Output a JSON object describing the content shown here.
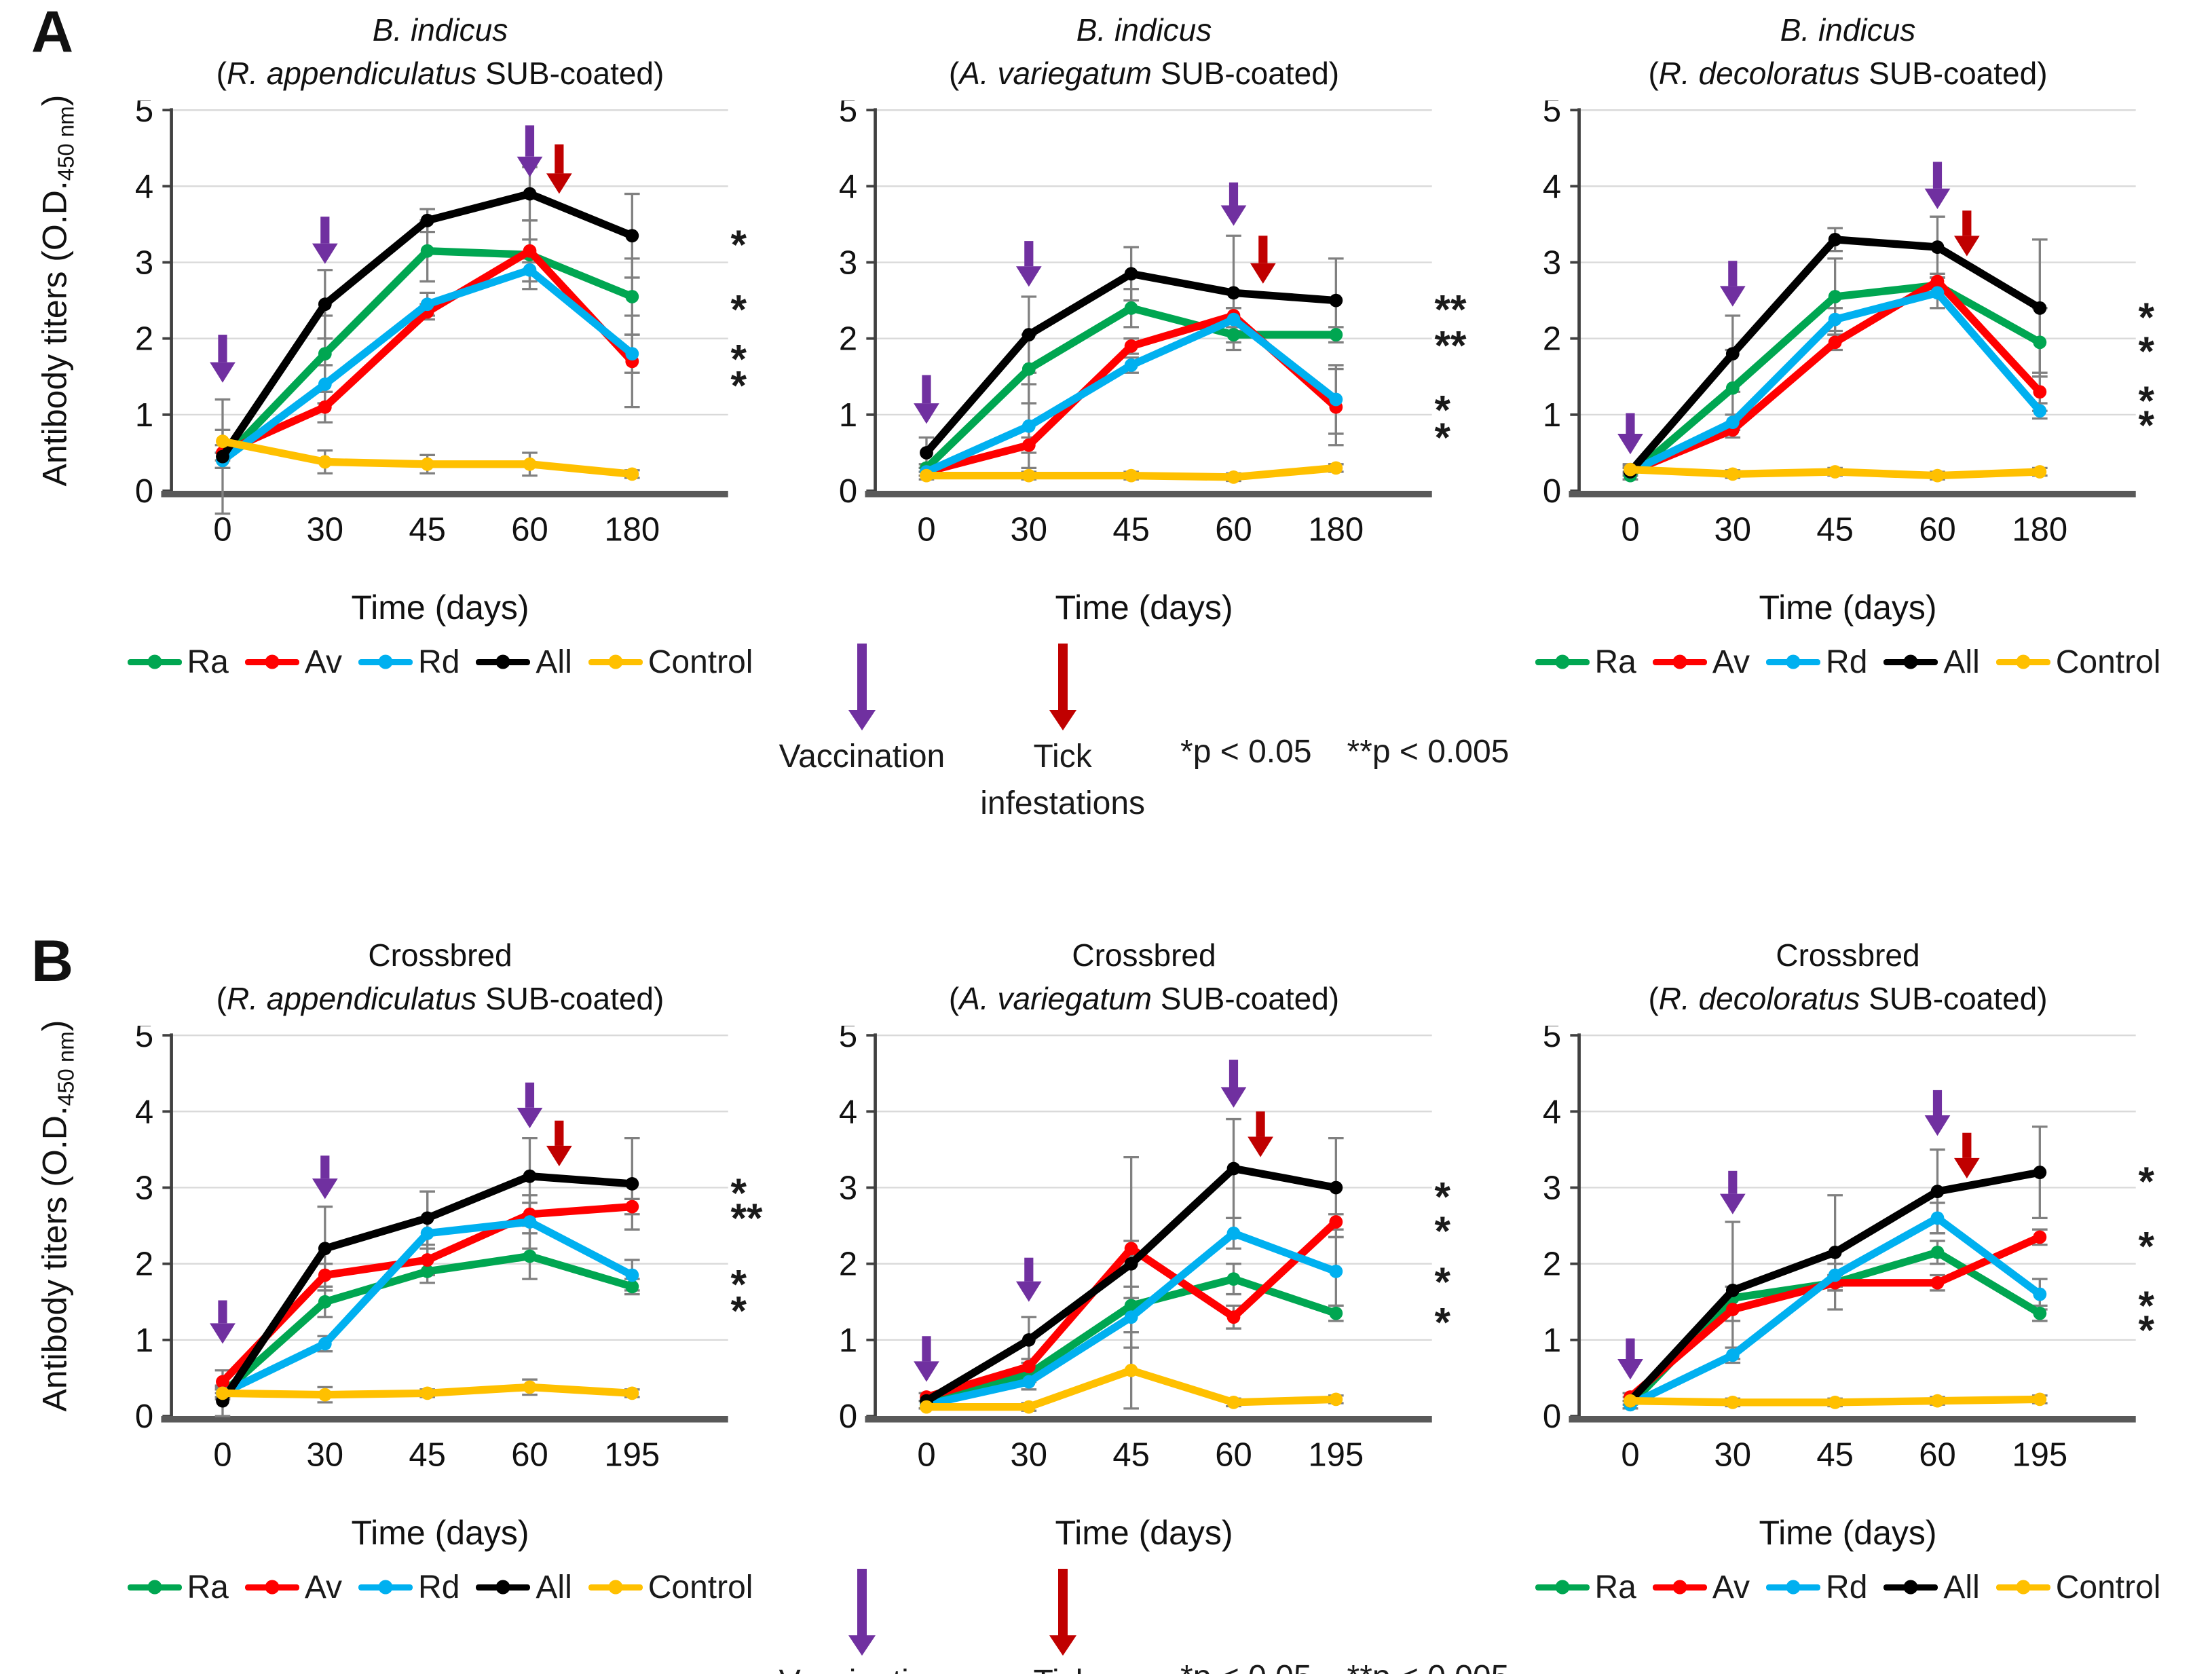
{
  "figure": {
    "panel_a_label": "A",
    "panel_b_label": "B",
    "ylabel_main": "Antibody titers (O.D.",
    "ylabel_sub": "450 nm",
    "ylabel_close": ")"
  },
  "colors": {
    "Ra": "#00A651",
    "Av": "#FF0000",
    "Rd": "#00B0F0",
    "All": "#000000",
    "Control": "#FFC000",
    "vaccination_arrow": "#7030A0",
    "tick_arrow": "#C00000",
    "grid": "#D9D9D9",
    "error_bar": "#808080",
    "axis": "#595959",
    "star": "#1a1a1a"
  },
  "legend": {
    "items": [
      "Ra",
      "Av",
      "Rd",
      "All",
      "Control"
    ]
  },
  "annotations": {
    "vaccination": "Vaccination",
    "tick": "Tick",
    "infestations": "infestations",
    "p1": "*p < 0.05",
    "p2": "**p < 0.005"
  },
  "chart_data": [
    {
      "type": "line",
      "panel": "A",
      "title": "B. indicus",
      "subtitle_pre": "(",
      "subtitle_species": "R. appendiculatus",
      "subtitle_post": " SUB-coated)",
      "xlabel": "Time (days)",
      "categories": [
        "0",
        "30",
        "45",
        "60",
        "180"
      ],
      "ylim": [
        0,
        5
      ],
      "yticks": [
        0,
        1,
        2,
        3,
        4,
        5
      ],
      "series": [
        {
          "name": "Ra",
          "values": [
            0.4,
            1.8,
            3.15,
            3.1,
            2.55
          ],
          "errors": [
            0.1,
            0.5,
            0.4,
            0.45,
            0.5
          ]
        },
        {
          "name": "Av",
          "values": [
            0.5,
            1.1,
            2.35,
            3.15,
            1.7
          ],
          "errors": [
            0.1,
            0.2,
            0.1,
            0.15,
            0.6
          ]
        },
        {
          "name": "Rd",
          "values": [
            0.4,
            1.4,
            2.45,
            2.9,
            1.8
          ],
          "errors": [
            0.1,
            0.25,
            0.15,
            0.15,
            0.25
          ]
        },
        {
          "name": "All",
          "values": [
            0.45,
            2.45,
            3.55,
            3.9,
            3.35
          ],
          "errors": [
            0.75,
            0.45,
            0.15,
            0.35,
            0.55
          ]
        },
        {
          "name": "Control",
          "values": [
            0.65,
            0.38,
            0.35,
            0.35,
            0.22
          ],
          "errors": [
            0.15,
            0.15,
            0.12,
            0.15,
            0.05
          ]
        }
      ],
      "arrows": [
        {
          "kind": "vaccination",
          "x_index": 0,
          "y_from": 2.05,
          "y_to": 1.42,
          "dx": 0
        },
        {
          "kind": "vaccination",
          "x_index": 1,
          "y_from": 3.6,
          "y_to": 2.98,
          "dx": 0
        },
        {
          "kind": "vaccination",
          "x_index": 3,
          "y_from": 4.8,
          "y_to": 4.12,
          "dx": 0
        },
        {
          "kind": "tick",
          "x_index": 3,
          "y_from": 4.55,
          "y_to": 3.9,
          "dx": 46
        }
      ],
      "stars": [
        {
          "y": 3.35,
          "mark": "*"
        },
        {
          "y": 2.5,
          "mark": "*"
        },
        {
          "y": 1.85,
          "mark": "*"
        },
        {
          "y": 1.5,
          "mark": "*"
        }
      ]
    },
    {
      "type": "line",
      "panel": "A",
      "title": "B. indicus",
      "subtitle_pre": "(",
      "subtitle_species": "A. variegatum",
      "subtitle_post": " SUB-coated)",
      "xlabel": "Time (days)",
      "categories": [
        "0",
        "30",
        "45",
        "60",
        "180"
      ],
      "ylim": [
        0,
        5
      ],
      "yticks": [
        0,
        1,
        2,
        3,
        4,
        5
      ],
      "series": [
        {
          "name": "Ra",
          "values": [
            0.3,
            1.6,
            2.4,
            2.05,
            2.05
          ],
          "errors": [
            0.05,
            0.45,
            0.25,
            0.1,
            0.1
          ]
        },
        {
          "name": "Av",
          "values": [
            0.25,
            0.6,
            1.9,
            2.3,
            1.1
          ],
          "errors": [
            0.05,
            0.1,
            0.1,
            0.1,
            0.5
          ]
        },
        {
          "name": "Rd",
          "values": [
            0.25,
            0.85,
            1.65,
            2.25,
            1.2
          ],
          "errors": [
            0.05,
            0.55,
            0.1,
            0.15,
            0.45
          ]
        },
        {
          "name": "All",
          "values": [
            0.5,
            2.05,
            2.85,
            2.6,
            2.5
          ],
          "errors": [
            0.2,
            0.5,
            0.35,
            0.75,
            0.55
          ]
        },
        {
          "name": "Control",
          "values": [
            0.2,
            0.2,
            0.2,
            0.18,
            0.3
          ],
          "errors": [
            0.05,
            0.05,
            0.05,
            0.05,
            0.05
          ]
        }
      ],
      "arrows": [
        {
          "kind": "vaccination",
          "x_index": 0,
          "y_from": 1.52,
          "y_to": 0.88,
          "dx": 0
        },
        {
          "kind": "vaccination",
          "x_index": 1,
          "y_from": 3.28,
          "y_to": 2.68,
          "dx": 0
        },
        {
          "kind": "vaccination",
          "x_index": 3,
          "y_from": 4.05,
          "y_to": 3.48,
          "dx": 0
        },
        {
          "kind": "tick",
          "x_index": 3,
          "y_from": 3.35,
          "y_to": 2.72,
          "dx": 46
        }
      ],
      "stars": [
        {
          "y": 2.5,
          "mark": "**"
        },
        {
          "y": 2.03,
          "mark": "**"
        },
        {
          "y": 1.18,
          "mark": "*"
        },
        {
          "y": 0.82,
          "mark": "*"
        }
      ]
    },
    {
      "type": "line",
      "panel": "A",
      "title": "B. indicus",
      "subtitle_pre": "(",
      "subtitle_species": "R. decoloratus",
      "subtitle_post": " SUB-coated)",
      "xlabel": "Time (days)",
      "categories": [
        "0",
        "30",
        "45",
        "60",
        "180"
      ],
      "ylim": [
        0,
        5
      ],
      "yticks": [
        0,
        1,
        2,
        3,
        4,
        5
      ],
      "series": [
        {
          "name": "Ra",
          "values": [
            0.2,
            1.35,
            2.55,
            2.7,
            1.95
          ],
          "errors": [
            0.05,
            0.5,
            0.5,
            0.1,
            0.45
          ]
        },
        {
          "name": "Av",
          "values": [
            0.25,
            0.8,
            1.95,
            2.75,
            1.3
          ],
          "errors": [
            0.05,
            0.1,
            0.1,
            0.1,
            0.25
          ]
        },
        {
          "name": "Rd",
          "values": [
            0.25,
            0.9,
            2.25,
            2.6,
            1.05
          ],
          "errors": [
            0.05,
            0.1,
            0.15,
            0.2,
            0.1
          ]
        },
        {
          "name": "All",
          "values": [
            0.25,
            1.8,
            3.3,
            3.2,
            2.4
          ],
          "errors": [
            0.1,
            0.5,
            0.15,
            0.4,
            0.9
          ]
        },
        {
          "name": "Control",
          "values": [
            0.28,
            0.22,
            0.25,
            0.2,
            0.25
          ],
          "errors": [
            0.05,
            0.05,
            0.05,
            0.05,
            0.05
          ]
        }
      ],
      "arrows": [
        {
          "kind": "vaccination",
          "x_index": 0,
          "y_from": 1.02,
          "y_to": 0.48,
          "dx": 0
        },
        {
          "kind": "vaccination",
          "x_index": 1,
          "y_from": 3.02,
          "y_to": 2.42,
          "dx": 0
        },
        {
          "kind": "vaccination",
          "x_index": 3,
          "y_from": 4.32,
          "y_to": 3.7,
          "dx": 0
        },
        {
          "kind": "tick",
          "x_index": 3,
          "y_from": 3.68,
          "y_to": 3.08,
          "dx": 46
        }
      ],
      "stars": [
        {
          "y": 2.4,
          "mark": "*"
        },
        {
          "y": 1.95,
          "mark": "*"
        },
        {
          "y": 1.3,
          "mark": "*"
        },
        {
          "y": 0.98,
          "mark": "*"
        }
      ]
    },
    {
      "type": "line",
      "panel": "B",
      "title": "Crossbred",
      "subtitle_pre": "(",
      "subtitle_species": "R. appendiculatus",
      "subtitle_post": " SUB-coated)",
      "xlabel": "Time (days)",
      "categories": [
        "0",
        "30",
        "45",
        "60",
        "195"
      ],
      "ylim": [
        0,
        5
      ],
      "yticks": [
        0,
        1,
        2,
        3,
        4,
        5
      ],
      "series": [
        {
          "name": "Ra",
          "values": [
            0.3,
            1.5,
            1.9,
            2.1,
            1.7
          ],
          "errors": [
            0.05,
            0.2,
            0.15,
            0.3,
            0.1
          ]
        },
        {
          "name": "Av",
          "values": [
            0.45,
            1.85,
            2.05,
            2.65,
            2.75
          ],
          "errors": [
            0.15,
            0.15,
            0.15,
            0.15,
            0.1
          ]
        },
        {
          "name": "Rd",
          "values": [
            0.3,
            0.95,
            2.4,
            2.55,
            1.85
          ],
          "errors": [
            0.05,
            0.1,
            0.55,
            0.35,
            0.2
          ]
        },
        {
          "name": "All",
          "values": [
            0.2,
            2.2,
            2.6,
            3.15,
            3.05
          ],
          "errors": [
            0.2,
            0.55,
            0.35,
            0.5,
            0.6
          ]
        },
        {
          "name": "Control",
          "values": [
            0.3,
            0.28,
            0.3,
            0.38,
            0.3
          ],
          "errors": [
            0.08,
            0.1,
            0.05,
            0.1,
            0.05
          ]
        }
      ],
      "arrows": [
        {
          "kind": "vaccination",
          "x_index": 0,
          "y_from": 1.52,
          "y_to": 0.95,
          "dx": 0
        },
        {
          "kind": "vaccination",
          "x_index": 1,
          "y_from": 3.42,
          "y_to": 2.85,
          "dx": 0
        },
        {
          "kind": "vaccination",
          "x_index": 3,
          "y_from": 4.38,
          "y_to": 3.78,
          "dx": 0
        },
        {
          "kind": "tick",
          "x_index": 3,
          "y_from": 3.88,
          "y_to": 3.28,
          "dx": 46
        }
      ],
      "stars": [
        {
          "y": 3.05,
          "mark": "*"
        },
        {
          "y": 2.72,
          "mark": "**"
        },
        {
          "y": 1.85,
          "mark": "*"
        },
        {
          "y": 1.5,
          "mark": "*"
        }
      ]
    },
    {
      "type": "line",
      "panel": "B",
      "title": "Crossbred",
      "subtitle_pre": "(",
      "subtitle_species": "A. variegatum",
      "subtitle_post": " SUB-coated)",
      "xlabel": "Time (days)",
      "categories": [
        "0",
        "30",
        "45",
        "60",
        "195"
      ],
      "ylim": [
        0,
        5
      ],
      "yticks": [
        0,
        1,
        2,
        3,
        4,
        5
      ],
      "series": [
        {
          "name": "Ra",
          "values": [
            0.15,
            0.55,
            1.45,
            1.8,
            1.35
          ],
          "errors": [
            0.05,
            0.1,
            0.1,
            0.2,
            0.1
          ]
        },
        {
          "name": "Av",
          "values": [
            0.25,
            0.65,
            2.2,
            1.3,
            2.55
          ],
          "errors": [
            0.05,
            0.1,
            0.1,
            0.15,
            0.1
          ]
        },
        {
          "name": "Rd",
          "values": [
            0.15,
            0.45,
            1.3,
            2.4,
            1.9
          ],
          "errors": [
            0.05,
            0.1,
            0.4,
            0.2,
            0.45
          ]
        },
        {
          "name": "All",
          "values": [
            0.2,
            1.0,
            2.0,
            3.25,
            3.0
          ],
          "errors": [
            0.1,
            0.3,
            1.4,
            0.65,
            0.65
          ]
        },
        {
          "name": "Control",
          "values": [
            0.12,
            0.12,
            0.6,
            0.18,
            0.22
          ],
          "errors": [
            0.03,
            0.05,
            0.5,
            0.05,
            0.05
          ]
        }
      ],
      "arrows": [
        {
          "kind": "vaccination",
          "x_index": 0,
          "y_from": 1.05,
          "y_to": 0.45,
          "dx": 0
        },
        {
          "kind": "vaccination",
          "x_index": 1,
          "y_from": 2.08,
          "y_to": 1.5,
          "dx": 0
        },
        {
          "kind": "vaccination",
          "x_index": 3,
          "y_from": 4.68,
          "y_to": 4.05,
          "dx": 0
        },
        {
          "kind": "tick",
          "x_index": 3,
          "y_from": 4.0,
          "y_to": 3.4,
          "dx": 42
        }
      ],
      "stars": [
        {
          "y": 3.0,
          "mark": "*"
        },
        {
          "y": 2.55,
          "mark": "*"
        },
        {
          "y": 1.88,
          "mark": "*"
        },
        {
          "y": 1.35,
          "mark": "*"
        }
      ]
    },
    {
      "type": "line",
      "panel": "B",
      "title": "Crossbred",
      "subtitle_pre": "(",
      "subtitle_species": "R. decoloratus",
      "subtitle_post": " SUB-coated)",
      "xlabel": "Time (days)",
      "categories": [
        "0",
        "30",
        "45",
        "60",
        "195"
      ],
      "ylim": [
        0,
        5
      ],
      "yticks": [
        0,
        1,
        2,
        3,
        4,
        5
      ],
      "series": [
        {
          "name": "Ra",
          "values": [
            0.15,
            1.55,
            1.75,
            2.15,
            1.35
          ],
          "errors": [
            0.05,
            0.15,
            0.1,
            0.15,
            0.1
          ]
        },
        {
          "name": "Av",
          "values": [
            0.25,
            1.4,
            1.75,
            1.75,
            2.35
          ],
          "errors": [
            0.05,
            0.15,
            0.1,
            0.1,
            0.1
          ]
        },
        {
          "name": "Rd",
          "values": [
            0.15,
            0.8,
            1.85,
            2.6,
            1.6
          ],
          "errors": [
            0.05,
            0.1,
            0.15,
            0.2,
            0.2
          ]
        },
        {
          "name": "All",
          "values": [
            0.2,
            1.65,
            2.15,
            2.95,
            3.2
          ],
          "errors": [
            0.1,
            0.9,
            0.75,
            0.55,
            0.6
          ]
        },
        {
          "name": "Control",
          "values": [
            0.2,
            0.18,
            0.18,
            0.2,
            0.22
          ],
          "errors": [
            0.05,
            0.05,
            0.05,
            0.05,
            0.05
          ]
        }
      ],
      "arrows": [
        {
          "kind": "vaccination",
          "x_index": 0,
          "y_from": 1.02,
          "y_to": 0.48,
          "dx": 0
        },
        {
          "kind": "vaccination",
          "x_index": 1,
          "y_from": 3.22,
          "y_to": 2.65,
          "dx": 0
        },
        {
          "kind": "vaccination",
          "x_index": 3,
          "y_from": 4.28,
          "y_to": 3.68,
          "dx": 0
        },
        {
          "kind": "tick",
          "x_index": 3,
          "y_from": 3.72,
          "y_to": 3.12,
          "dx": 46
        }
      ],
      "stars": [
        {
          "y": 3.2,
          "mark": "*"
        },
        {
          "y": 2.35,
          "mark": "*"
        },
        {
          "y": 1.57,
          "mark": "*"
        },
        {
          "y": 1.25,
          "mark": "*"
        }
      ]
    }
  ]
}
